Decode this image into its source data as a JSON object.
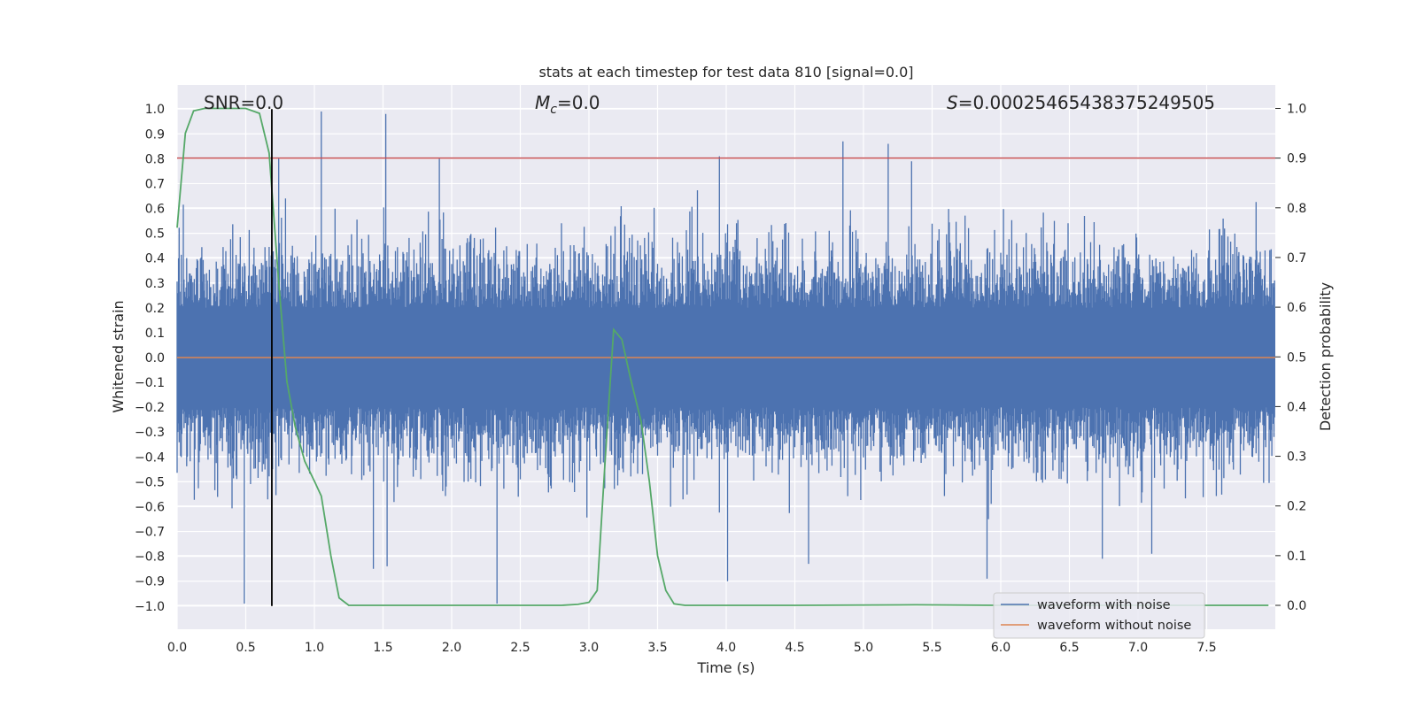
{
  "chart_data": {
    "type": "line",
    "title": "stats at each timestep for test data 810 [signal=0.0]",
    "xlabel": "Time (s)",
    "ylabel": "Whitened strain",
    "ylabel_right": "Detection probability",
    "xlim": [
      0.0,
      8.0
    ],
    "ylim": [
      -1.1,
      1.1
    ],
    "ylim_right": [
      -0.05,
      1.05
    ],
    "xticks": [
      0.0,
      0.5,
      1.0,
      1.5,
      2.0,
      2.5,
      3.0,
      3.5,
      4.0,
      4.5,
      5.0,
      5.5,
      6.0,
      6.5,
      7.0,
      7.5
    ],
    "xtick_labels": [
      "0.0",
      "0.5",
      "1.0",
      "1.5",
      "2.0",
      "2.5",
      "3.0",
      "3.5",
      "4.0",
      "4.5",
      "5.0",
      "5.5",
      "6.0",
      "6.5",
      "7.0",
      "7.5"
    ],
    "yticks": [
      -1.0,
      -0.9,
      -0.8,
      -0.7,
      -0.6,
      -0.5,
      -0.4,
      -0.3,
      -0.2,
      -0.1,
      0.0,
      0.1,
      0.2,
      0.3,
      0.4,
      0.5,
      0.6,
      0.7,
      0.8,
      0.9,
      1.0
    ],
    "ytick_labels": [
      "−1.0",
      "−0.9",
      "−0.8",
      "−0.7",
      "−0.6",
      "−0.5",
      "−0.4",
      "−0.3",
      "−0.2",
      "−0.1",
      "0.0",
      "0.1",
      "0.2",
      "0.3",
      "0.4",
      "0.5",
      "0.6",
      "0.7",
      "0.8",
      "0.9",
      "1.0"
    ],
    "yticks_right": [
      0.0,
      0.1,
      0.2,
      0.3,
      0.4,
      0.5,
      0.6,
      0.7,
      0.8,
      0.9,
      1.0
    ],
    "ytick_labels_right": [
      "0.0",
      "0.1",
      "0.2",
      "0.3",
      "0.4",
      "0.5",
      "0.6",
      "0.7",
      "0.8",
      "0.9",
      "1.0"
    ],
    "grid": true,
    "annotations": {
      "snr": "SNR=0.0",
      "mc_symbol": "M",
      "mc_sub": "c",
      "mc_value": "=0.0",
      "s_symbol": "S",
      "s_value": "=0.00025465438375249505"
    },
    "legend": {
      "position": "lower right",
      "entries": [
        "waveform with noise",
        "waveform without noise"
      ]
    },
    "threshold": {
      "value_right": 0.9,
      "color": "#c44e52"
    },
    "vline": {
      "x": 0.69,
      "y_from": -1.0,
      "y_to": 1.0,
      "color": "#000000"
    },
    "series": [
      {
        "name": "waveform with noise",
        "axis": "left",
        "color": "#4c72b0",
        "kind": "noise",
        "dt": 0.005,
        "spikes": [
          {
            "x": 1.05,
            "y": 0.99
          },
          {
            "x": 1.52,
            "y": 0.98
          },
          {
            "x": 0.74,
            "y": 0.8
          },
          {
            "x": 1.91,
            "y": 0.8
          },
          {
            "x": 4.85,
            "y": 0.87
          },
          {
            "x": 5.18,
            "y": 0.86
          },
          {
            "x": 5.35,
            "y": 0.79
          },
          {
            "x": 3.95,
            "y": 0.81
          },
          {
            "x": 2.33,
            "y": -0.99
          },
          {
            "x": 0.49,
            "y": -0.99
          },
          {
            "x": 5.9,
            "y": -0.89
          },
          {
            "x": 4.01,
            "y": -0.9
          },
          {
            "x": 1.43,
            "y": -0.85
          },
          {
            "x": 1.53,
            "y": -0.84
          },
          {
            "x": 4.6,
            "y": -0.83
          },
          {
            "x": 6.74,
            "y": -0.81
          },
          {
            "x": 7.1,
            "y": -0.79
          }
        ]
      },
      {
        "name": "waveform without noise",
        "axis": "left",
        "color": "#dd8452",
        "points": [
          [
            0.0,
            0.0
          ],
          [
            8.0,
            0.0
          ]
        ]
      },
      {
        "name": "detection probability",
        "axis": "right",
        "color": "#55a868",
        "points": [
          [
            0.0,
            0.76
          ],
          [
            0.06,
            0.95
          ],
          [
            0.12,
            0.995
          ],
          [
            0.2,
            1.0
          ],
          [
            0.3,
            1.0
          ],
          [
            0.4,
            1.0
          ],
          [
            0.5,
            1.0
          ],
          [
            0.6,
            0.99
          ],
          [
            0.67,
            0.91
          ],
          [
            0.74,
            0.65
          ],
          [
            0.8,
            0.45
          ],
          [
            0.86,
            0.36
          ],
          [
            0.93,
            0.29
          ],
          [
            1.0,
            0.25
          ],
          [
            1.05,
            0.22
          ],
          [
            1.12,
            0.1
          ],
          [
            1.18,
            0.015
          ],
          [
            1.25,
            0.0
          ],
          [
            1.5,
            0.0
          ],
          [
            2.0,
            0.0
          ],
          [
            2.5,
            0.0
          ],
          [
            2.8,
            0.0
          ],
          [
            2.92,
            0.002
          ],
          [
            3.0,
            0.006
          ],
          [
            3.06,
            0.03
          ],
          [
            3.12,
            0.3
          ],
          [
            3.18,
            0.555
          ],
          [
            3.24,
            0.535
          ],
          [
            3.3,
            0.46
          ],
          [
            3.38,
            0.37
          ],
          [
            3.44,
            0.25
          ],
          [
            3.5,
            0.1
          ],
          [
            3.56,
            0.03
          ],
          [
            3.62,
            0.003
          ],
          [
            3.7,
            0.0
          ],
          [
            4.5,
            0.0
          ],
          [
            5.38,
            0.001
          ],
          [
            6.0,
            0.0
          ],
          [
            8.0,
            0.0
          ]
        ]
      }
    ]
  }
}
